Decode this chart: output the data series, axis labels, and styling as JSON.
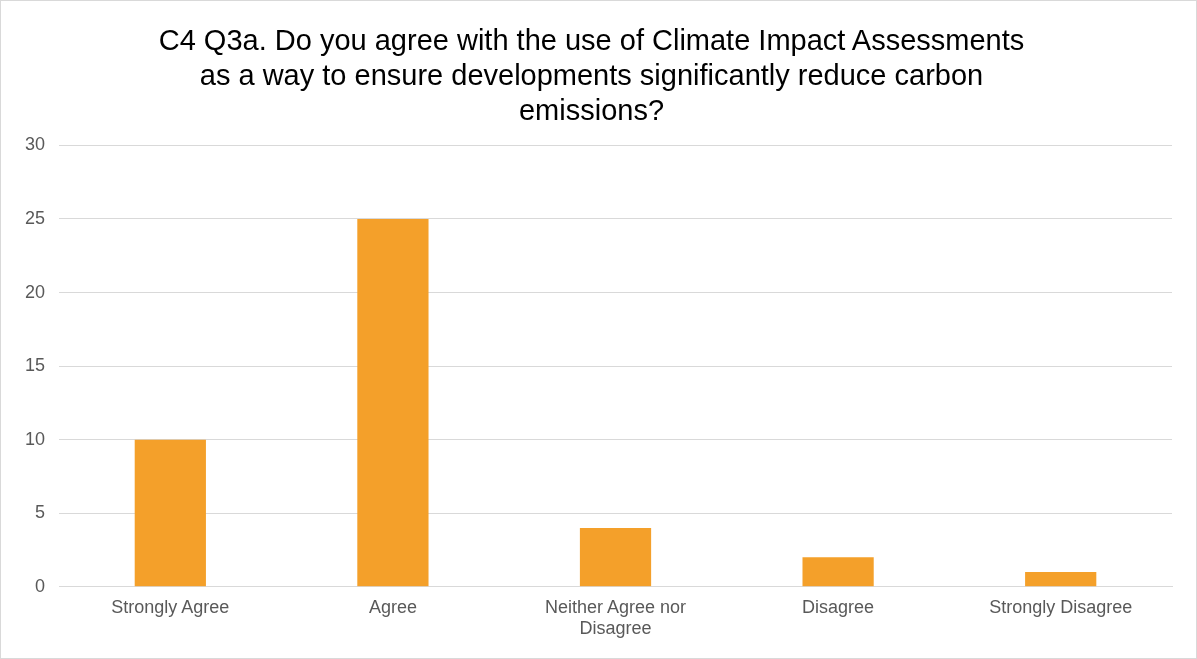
{
  "chart_data": {
    "type": "bar",
    "title": "C4 Q3a. Do you agree with the use of Climate Impact Assessments as a way to ensure developments significantly reduce carbon emissions?",
    "categories": [
      "Strongly Agree",
      "Agree",
      "Neither Agree nor Disagree",
      "Disagree",
      "Strongly Disagree"
    ],
    "values": [
      10,
      25,
      4,
      2,
      1
    ],
    "color": "#f4a02a",
    "ylim": [
      0,
      30
    ],
    "yticks": [
      0,
      5,
      10,
      15,
      20,
      25,
      30
    ],
    "grid": "y",
    "legend": false
  }
}
